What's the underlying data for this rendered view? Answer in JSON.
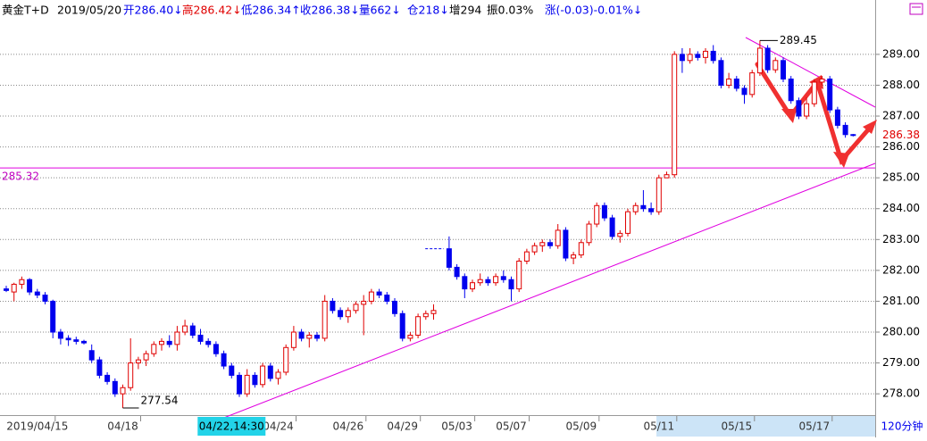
{
  "chart_data": {
    "type": "candlestick",
    "header": [
      "黄金T+D",
      "2019/05/20",
      "开286.40↓",
      "高286.42↓",
      "低286.34↑",
      "收286.38↓",
      "量662↓",
      "仓218↓",
      "增294",
      "振0.03%",
      "涨(-0.03)-0.01%↓"
    ],
    "period": "120分钟",
    "cursor_label": "04/22,14:30",
    "up_color": "#e00000",
    "down_color": "#0000ee",
    "reference_line": 285.32,
    "ylim": [
      277.31,
      290.53
    ],
    "yticks": [
      {
        "value": 278,
        "label": "278.00"
      },
      {
        "value": 279,
        "label": "279.00"
      },
      {
        "value": 280,
        "label": "280.00"
      },
      {
        "value": 281,
        "label": "281.00"
      },
      {
        "value": 282,
        "label": "282.00"
      },
      {
        "value": 283,
        "label": "283.00"
      },
      {
        "value": 284,
        "label": "284.00"
      },
      {
        "value": 285,
        "label": "285.00"
      },
      {
        "value": 286,
        "label": "286.00"
      },
      {
        "value": 287,
        "label": "287.00"
      },
      {
        "value": 288,
        "label": "288.00"
      },
      {
        "value": 289,
        "label": "289.00"
      }
    ],
    "grid": true,
    "categories": [
      null,
      null,
      null,
      null,
      "2019/04/15",
      null,
      null,
      null,
      null,
      null,
      null,
      null,
      null,
      null,
      null,
      "04/18",
      null,
      null,
      null,
      null,
      null,
      null,
      null,
      null,
      null,
      null,
      null,
      null,
      null,
      null,
      null,
      null,
      null,
      null,
      null,
      "04/24",
      null,
      null,
      null,
      null,
      null,
      null,
      null,
      null,
      "04/26",
      null,
      null,
      null,
      null,
      null,
      null,
      "04/29",
      null,
      null,
      null,
      null,
      null,
      null,
      "05/03",
      null,
      null,
      null,
      null,
      null,
      null,
      "05/07",
      null,
      null,
      null,
      null,
      null,
      null,
      null,
      null,
      "05/09",
      null,
      null,
      null,
      null,
      null,
      null,
      null,
      null,
      null,
      "05/11",
      null,
      null,
      null,
      null,
      null,
      null,
      null,
      null,
      null,
      "05/15",
      null,
      null,
      null,
      null,
      null,
      null,
      null,
      null,
      null,
      "05/17",
      null,
      null,
      null,
      null,
      null
    ],
    "ohlc": [
      [
        281.4,
        281.5,
        281.3,
        281.35
      ],
      [
        281.3,
        281.6,
        281.0,
        281.55
      ],
      [
        281.55,
        281.8,
        281.4,
        281.7
      ],
      [
        281.7,
        281.75,
        281.2,
        281.3
      ],
      [
        281.3,
        281.4,
        281.1,
        281.2
      ],
      [
        281.2,
        281.3,
        280.9,
        281.0
      ],
      [
        281.0,
        281.05,
        279.8,
        280.0
      ],
      [
        280.0,
        280.1,
        279.6,
        279.8
      ],
      [
        279.8,
        279.9,
        279.55,
        279.75
      ],
      [
        279.75,
        279.85,
        279.6,
        279.7
      ],
      [
        279.7,
        279.75,
        279.6,
        279.65
      ],
      [
        279.4,
        279.6,
        279.0,
        279.1
      ],
      [
        279.1,
        279.2,
        278.5,
        278.6
      ],
      [
        278.6,
        278.7,
        278.3,
        278.4
      ],
      [
        278.4,
        278.5,
        277.9,
        278.0
      ],
      [
        278.0,
        278.3,
        277.54,
        278.2
      ],
      [
        278.2,
        279.8,
        278.1,
        279.0
      ],
      [
        279.0,
        279.2,
        278.8,
        279.1
      ],
      [
        279.1,
        279.4,
        278.9,
        279.3
      ],
      [
        279.3,
        279.7,
        279.2,
        279.6
      ],
      [
        279.6,
        279.8,
        279.4,
        279.7
      ],
      [
        279.7,
        279.9,
        279.5,
        279.6
      ],
      [
        279.6,
        280.2,
        279.4,
        280.0
      ],
      [
        280.0,
        280.4,
        279.9,
        280.2
      ],
      [
        280.2,
        280.3,
        279.8,
        279.9
      ],
      [
        279.9,
        280.1,
        279.6,
        279.7
      ],
      [
        279.7,
        279.8,
        279.5,
        279.6
      ],
      [
        279.6,
        279.7,
        279.2,
        279.3
      ],
      [
        279.3,
        279.4,
        278.8,
        278.9
      ],
      [
        278.9,
        279.0,
        278.5,
        278.6
      ],
      [
        278.6,
        278.7,
        277.9,
        278.0
      ],
      [
        278.0,
        278.8,
        277.9,
        278.6
      ],
      [
        278.6,
        278.7,
        278.2,
        278.3
      ],
      [
        278.3,
        279.0,
        278.2,
        278.9
      ],
      [
        278.9,
        279.0,
        278.4,
        278.5
      ],
      [
        278.5,
        278.8,
        278.3,
        278.7
      ],
      [
        278.7,
        279.6,
        278.6,
        279.5
      ],
      [
        279.5,
        280.2,
        279.4,
        280.0
      ],
      [
        280.0,
        280.1,
        279.7,
        279.8
      ],
      [
        279.8,
        280.0,
        279.5,
        279.9
      ],
      [
        279.9,
        280.0,
        279.7,
        279.8
      ],
      [
        279.8,
        281.2,
        279.7,
        281.0
      ],
      [
        281.0,
        281.1,
        280.6,
        280.7
      ],
      [
        280.7,
        280.8,
        280.4,
        280.5
      ],
      [
        280.5,
        280.8,
        280.3,
        280.7
      ],
      [
        280.7,
        281.0,
        280.6,
        280.9
      ],
      [
        280.9,
        281.2,
        279.9,
        281.0
      ],
      [
        281.0,
        281.4,
        280.9,
        281.3
      ],
      [
        281.3,
        281.4,
        281.1,
        281.2
      ],
      [
        281.2,
        281.3,
        280.9,
        281.0
      ],
      [
        281.0,
        281.1,
        280.5,
        280.6
      ],
      [
        280.6,
        280.7,
        279.7,
        279.8
      ],
      [
        279.8,
        280.0,
        279.7,
        279.9
      ],
      [
        279.9,
        280.6,
        279.8,
        280.5
      ],
      [
        280.5,
        280.7,
        280.4,
        280.6
      ],
      [
        280.6,
        280.9,
        280.4,
        280.7
      ],
      [
        282.7,
        282.7,
        282.7,
        282.7
      ],
      [
        282.7,
        283.1,
        282.0,
        282.1
      ],
      [
        282.1,
        282.2,
        281.7,
        281.8
      ],
      [
        281.8,
        281.9,
        281.1,
        281.4
      ],
      [
        281.4,
        281.7,
        281.3,
        281.6
      ],
      [
        281.6,
        281.9,
        281.5,
        281.7
      ],
      [
        281.7,
        281.8,
        281.5,
        281.6
      ],
      [
        281.6,
        281.9,
        281.5,
        281.8
      ],
      [
        281.8,
        282.0,
        281.6,
        281.7
      ],
      [
        281.7,
        281.8,
        281.0,
        281.4
      ],
      [
        281.4,
        282.4,
        281.3,
        282.3
      ],
      [
        282.3,
        282.7,
        282.2,
        282.6
      ],
      [
        282.6,
        282.9,
        282.5,
        282.8
      ],
      [
        282.8,
        283.0,
        282.6,
        282.9
      ],
      [
        282.9,
        283.0,
        282.7,
        282.8
      ],
      [
        282.8,
        283.5,
        282.7,
        283.3
      ],
      [
        283.3,
        283.4,
        282.3,
        282.4
      ],
      [
        282.4,
        282.6,
        282.2,
        282.5
      ],
      [
        282.5,
        283.0,
        282.4,
        282.9
      ],
      [
        282.9,
        283.6,
        282.8,
        283.5
      ],
      [
        283.5,
        284.2,
        283.4,
        284.1
      ],
      [
        284.1,
        284.2,
        283.6,
        283.7
      ],
      [
        283.7,
        283.8,
        283.0,
        283.1
      ],
      [
        283.1,
        283.3,
        282.9,
        283.2
      ],
      [
        283.2,
        284.0,
        283.1,
        283.9
      ],
      [
        283.9,
        284.2,
        283.8,
        284.1
      ],
      [
        284.1,
        284.6,
        283.9,
        284.0
      ],
      [
        284.0,
        284.2,
        283.8,
        283.9
      ],
      [
        283.9,
        285.1,
        283.8,
        285.0
      ],
      [
        285.0,
        285.2,
        285.0,
        285.1
      ],
      [
        285.1,
        289.1,
        285.0,
        289.0
      ],
      [
        289.0,
        289.2,
        288.4,
        288.8
      ],
      [
        288.8,
        289.2,
        288.7,
        289.0
      ],
      [
        289.0,
        289.1,
        288.8,
        288.9
      ],
      [
        288.9,
        289.2,
        288.7,
        289.1
      ],
      [
        289.1,
        289.3,
        288.7,
        288.8
      ],
      [
        288.8,
        288.9,
        287.9,
        288.0
      ],
      [
        288.0,
        288.4,
        287.9,
        288.2
      ],
      [
        288.2,
        288.3,
        287.8,
        287.9
      ],
      [
        287.9,
        288.0,
        287.4,
        287.7
      ],
      [
        287.7,
        288.5,
        287.6,
        288.4
      ],
      [
        288.4,
        289.45,
        288.3,
        289.2
      ],
      [
        289.2,
        289.3,
        288.4,
        288.5
      ],
      [
        288.5,
        288.9,
        288.4,
        288.8
      ],
      [
        288.8,
        288.9,
        288.1,
        288.2
      ],
      [
        288.2,
        288.3,
        287.4,
        287.5
      ],
      [
        287.5,
        287.6,
        286.9,
        287.0
      ],
      [
        287.0,
        287.6,
        286.9,
        287.4
      ],
      [
        287.4,
        288.2,
        287.3,
        288.1
      ],
      [
        288.1,
        288.3,
        288.0,
        288.2
      ],
      [
        288.2,
        288.3,
        287.1,
        287.2
      ],
      [
        287.2,
        287.3,
        286.6,
        286.7
      ],
      [
        286.7,
        286.8,
        286.3,
        286.4
      ],
      [
        286.4,
        286.42,
        286.34,
        286.38
      ]
    ]
  }
}
